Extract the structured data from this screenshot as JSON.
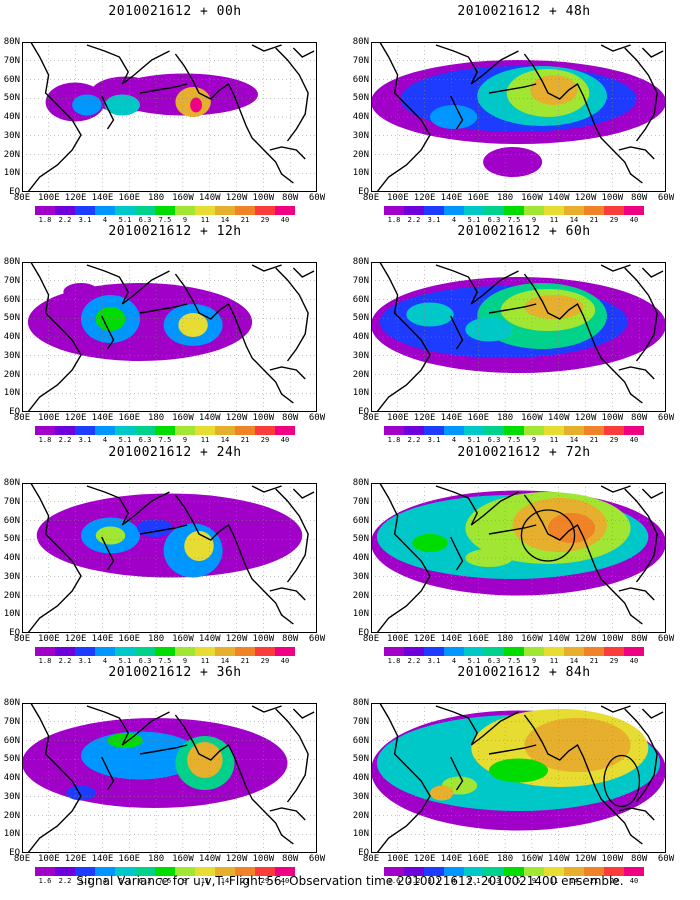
{
  "panels": [
    {
      "title": "2010021612 + 00h",
      "lead": "00h"
    },
    {
      "title": "2010021612 + 48h",
      "lead": "48h"
    },
    {
      "title": "2010021612 + 12h",
      "lead": "12h"
    },
    {
      "title": "2010021612 + 60h",
      "lead": "60h"
    },
    {
      "title": "2010021612 + 24h",
      "lead": "24h"
    },
    {
      "title": "2010021612 + 72h",
      "lead": "72h"
    },
    {
      "title": "2010021612 + 36h",
      "lead": "36h"
    },
    {
      "title": "2010021612 + 84h",
      "lead": "84h"
    }
  ],
  "y_axis_labels": [
    "80N",
    "70N",
    "60N",
    "50N",
    "40N",
    "30N",
    "20N",
    "10N",
    "EQ"
  ],
  "x_axis_labels": [
    "80E",
    "100E",
    "120E",
    "140E",
    "160E",
    "180",
    "160W",
    "140W",
    "120W",
    "100W",
    "80W",
    "60W"
  ],
  "colorbar": {
    "labels": [
      "1.8",
      "2.2",
      "3.1",
      "4",
      "5.1",
      "6.3",
      "7.5",
      "9",
      "11",
      "14",
      "21",
      "29",
      "40"
    ],
    "labels_last_row": [
      "1.6",
      "2.2",
      "3.1",
      "4",
      "5.1",
      "6.3",
      "7.5",
      "9",
      "11",
      "14",
      "21",
      "29",
      "40"
    ],
    "colors": [
      "#a000c8",
      "#6e00dc",
      "#1e3cff",
      "#0096ff",
      "#00c8c8",
      "#00d28c",
      "#00dc00",
      "#a0e632",
      "#e6dc32",
      "#e6af2d",
      "#f08228",
      "#fa3c3c",
      "#f00082"
    ]
  },
  "footer": "Signal Variance for u,v,T. Flight 56. Observation time 2010021612. 2010021400 ensemble."
}
